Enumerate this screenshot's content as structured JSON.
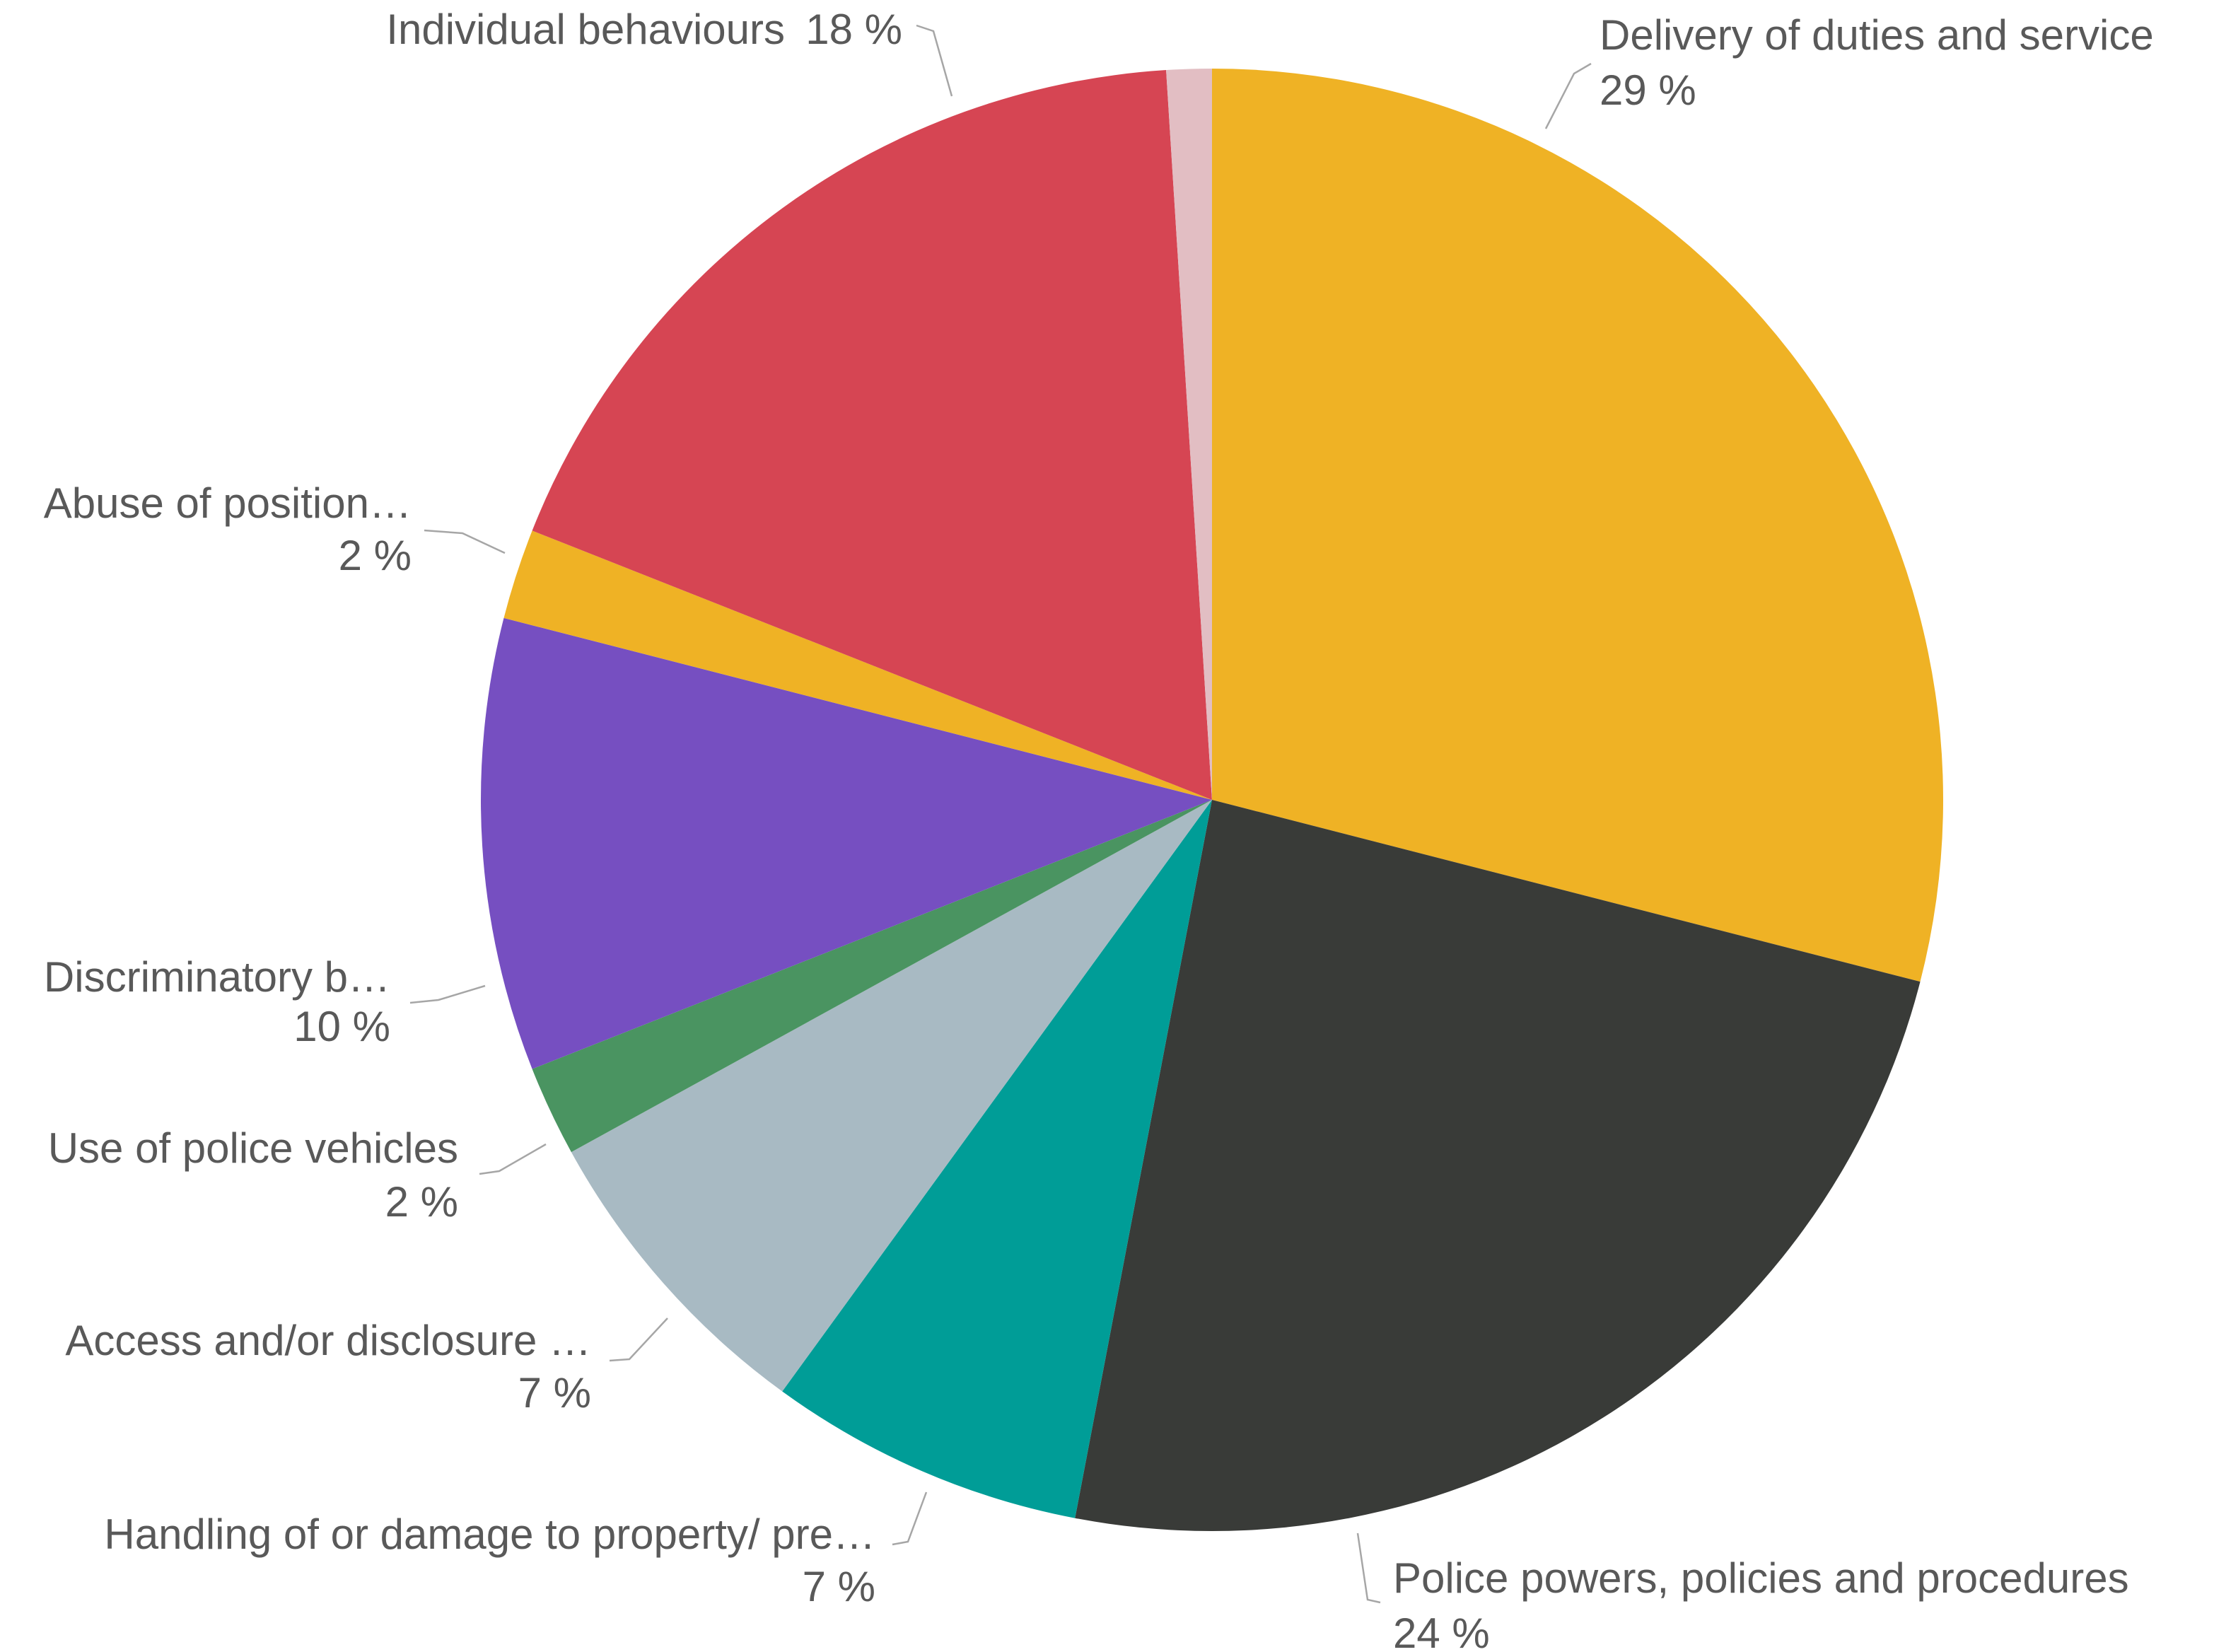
{
  "chart_data": {
    "type": "pie",
    "start_angle_deg": 0,
    "direction": "clockwise",
    "slices": [
      {
        "key": "delivery",
        "label": "Delivery of duties and service",
        "value": 29,
        "value_label": "29 %",
        "color": "#EFB225"
      },
      {
        "key": "powers",
        "label": "Police powers, policies and procedures",
        "value": 24,
        "value_label": "24 %",
        "color": "#393B38"
      },
      {
        "key": "property",
        "label": "Handling of or damage to property/ pre…",
        "value": 7,
        "value_label": "7 %",
        "color": "#009D97"
      },
      {
        "key": "access",
        "label": "Access and/or disclosure …",
        "value": 7,
        "value_label": "7 %",
        "color": "#A8BAC3"
      },
      {
        "key": "vehicles",
        "label": "Use of police vehicles",
        "value": 2,
        "value_label": "2 %",
        "color": "#4A9461"
      },
      {
        "key": "discrim",
        "label": "Discriminatory b…",
        "value": 10,
        "value_label": "10 %",
        "color": "#764FC1"
      },
      {
        "key": "abuse",
        "label": "Abuse of position…",
        "value": 2,
        "value_label": "2 %",
        "color": "#EFB225"
      },
      {
        "key": "individual",
        "label": "Individual behaviours",
        "value": 18,
        "value_label": "18 %",
        "color": "#D64553"
      },
      {
        "key": "other",
        "label": "",
        "value": 1,
        "value_label": "",
        "color": "#E2BEC3"
      }
    ]
  }
}
